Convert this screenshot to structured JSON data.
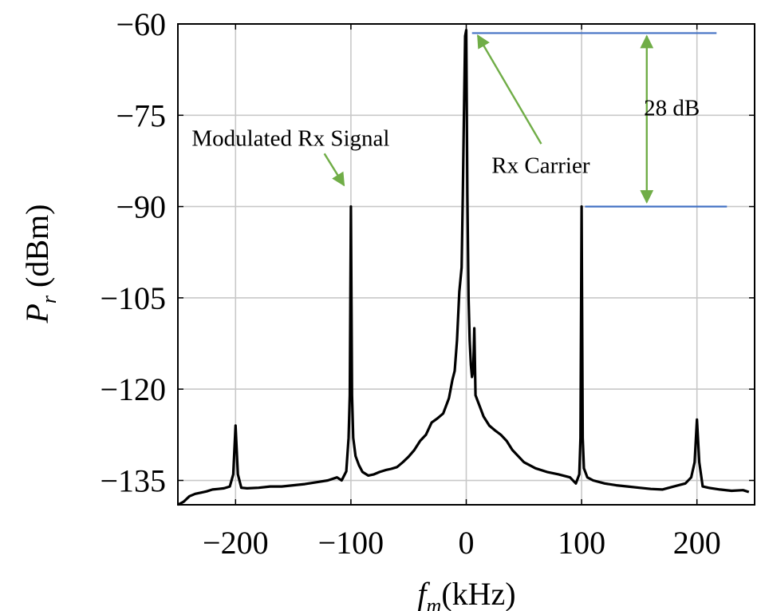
{
  "chart_data": {
    "type": "line",
    "title": "",
    "xlabel": {
      "main": "f",
      "sub": "m",
      "unit": "(kHz)"
    },
    "ylabel": {
      "main": "P",
      "sub": "r",
      "unit": " (dBm)"
    },
    "xlim": [
      -250,
      250
    ],
    "ylim": [
      -139,
      -60
    ],
    "xticks": [
      -200,
      -100,
      0,
      100,
      200
    ],
    "xtick_labels": [
      "−200",
      "−100",
      "0",
      "100",
      "200"
    ],
    "yticks": [
      -60,
      -75,
      -90,
      -105,
      -120,
      -135
    ],
    "ytick_labels": [
      "−60",
      "−75",
      "−90",
      "−105",
      "−120",
      "−135"
    ],
    "grid": true,
    "series": [
      {
        "color": "#000000",
        "x": [
          -250,
          -245,
          -240,
          -235,
          -230,
          -225,
          -220,
          -215,
          -210,
          -205,
          -202,
          -200,
          -198,
          -195,
          -190,
          -180,
          -170,
          -160,
          -150,
          -140,
          -130,
          -120,
          -112,
          -108,
          -104,
          -102,
          -101,
          -100,
          -99,
          -98,
          -96,
          -93,
          -90,
          -85,
          -80,
          -75,
          -70,
          -65,
          -60,
          -55,
          -50,
          -45,
          -40,
          -35,
          -30,
          -25,
          -20,
          -15,
          -12,
          -10,
          -8,
          -6,
          -4,
          -3,
          -2,
          -1,
          0,
          1,
          2,
          3,
          4,
          5,
          6,
          7,
          8,
          10,
          12,
          15,
          20,
          25,
          30,
          35,
          40,
          50,
          60,
          70,
          80,
          90,
          95,
          98,
          99,
          100,
          101,
          102,
          105,
          110,
          120,
          130,
          140,
          150,
          160,
          170,
          180,
          190,
          195,
          198,
          200,
          202,
          205,
          210,
          220,
          230,
          240,
          245
        ],
        "y": [
          -139,
          -138.5,
          -137.6,
          -137.2,
          -137,
          -136.8,
          -136.5,
          -136.4,
          -136.3,
          -136,
          -134,
          -126,
          -134,
          -136.2,
          -136.3,
          -136.2,
          -136,
          -136,
          -135.8,
          -135.6,
          -135.3,
          -135,
          -134.5,
          -135,
          -133.5,
          -128,
          -121,
          -90,
          -121,
          -128,
          -131,
          -132.5,
          -133.6,
          -134.2,
          -134,
          -133.6,
          -133.3,
          -133.1,
          -132.8,
          -132,
          -131.1,
          -130,
          -128.5,
          -127.5,
          -125.5,
          -124.8,
          -124,
          -121.5,
          -118.5,
          -117,
          -112,
          -104,
          -100,
          -88,
          -75,
          -62,
          -61,
          -88,
          -105,
          -112,
          -116,
          -118,
          -117,
          -110,
          -121,
          -122,
          -123,
          -124.5,
          -126,
          -126.8,
          -127.5,
          -128.5,
          -130,
          -132,
          -133,
          -133.6,
          -134,
          -134.5,
          -135.5,
          -134,
          -128,
          -90,
          -128,
          -133,
          -134.5,
          -135,
          -135.5,
          -135.8,
          -136,
          -136.2,
          -136.4,
          -136.5,
          -136,
          -135.5,
          -134.5,
          -132,
          -125,
          -132,
          -136,
          -136.2,
          -136.5,
          -136.7,
          -136.6,
          -136.9
        ]
      }
    ],
    "reference_lines": [
      {
        "y": -61.5,
        "x1": 5,
        "x2": 217,
        "color": "#4472c4"
      },
      {
        "y": -90,
        "x1": 103,
        "x2": 226,
        "color": "#4472c4"
      }
    ],
    "annotations": [
      {
        "text": "Modulated Rx Signal",
        "x": -238,
        "y": -80,
        "arrow_from": [
          -123,
          -81.3
        ],
        "arrow_to": [
          -106,
          -86.5
        ]
      },
      {
        "text": "Rx Carrier",
        "x": 22,
        "y": -84.5,
        "arrow_from": [
          65,
          -79.7
        ],
        "arrow_to": [
          10,
          -61.9
        ]
      },
      {
        "text": "28 dB",
        "x": 154,
        "y": -75,
        "dimension_from": -62,
        "dimension_to": -89.3,
        "dimension_x": 156.5
      }
    ],
    "annotation_color": "#70ad47",
    "legend": "none"
  }
}
